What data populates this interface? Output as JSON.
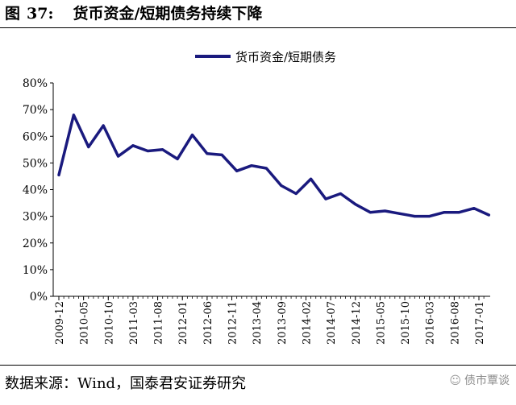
{
  "figure": {
    "label": "图",
    "number": "37:",
    "title": "货币资金/短期债务持续下降"
  },
  "footer": {
    "source": "数据来源：Wind，国泰君安证券研究"
  },
  "watermark": {
    "icon": "wechat-icon",
    "text": "债市覃谈"
  },
  "chart_data": {
    "type": "line",
    "title": "",
    "xlabel": "",
    "ylabel": "",
    "ylim": [
      0,
      0.8
    ],
    "yticks": [
      "0%",
      "10%",
      "20%",
      "30%",
      "40%",
      "50%",
      "60%",
      "70%",
      "80%"
    ],
    "grid": false,
    "legend_position": "top-center",
    "line_color": "#1a1a7e",
    "x_tick_labels": [
      "2009-12",
      "2010-05",
      "2010-10",
      "2011-03",
      "2011-08",
      "2012-01",
      "2012-06",
      "2012-11",
      "2013-04",
      "2013-09",
      "2014-02",
      "2014-07",
      "2014-12",
      "2015-05",
      "2015-10",
      "2016-03",
      "2016-08",
      "2017-01"
    ],
    "x": [
      "2009-12",
      "2010-03",
      "2010-06",
      "2010-09",
      "2010-12",
      "2011-03",
      "2011-06",
      "2011-09",
      "2011-12",
      "2012-03",
      "2012-06",
      "2012-09",
      "2012-12",
      "2013-03",
      "2013-06",
      "2013-09",
      "2013-12",
      "2014-03",
      "2014-06",
      "2014-09",
      "2014-12",
      "2015-03",
      "2015-06",
      "2015-09",
      "2015-12",
      "2016-03",
      "2016-06",
      "2016-09",
      "2016-12",
      "2017-03"
    ],
    "series": [
      {
        "name": "货币资金/短期债务",
        "values": [
          0.455,
          0.68,
          0.56,
          0.64,
          0.525,
          0.565,
          0.545,
          0.55,
          0.515,
          0.605,
          0.535,
          0.53,
          0.47,
          0.49,
          0.48,
          0.415,
          0.385,
          0.44,
          0.365,
          0.385,
          0.345,
          0.315,
          0.32,
          0.31,
          0.3,
          0.3,
          0.315,
          0.315,
          0.33,
          0.305
        ]
      }
    ]
  }
}
